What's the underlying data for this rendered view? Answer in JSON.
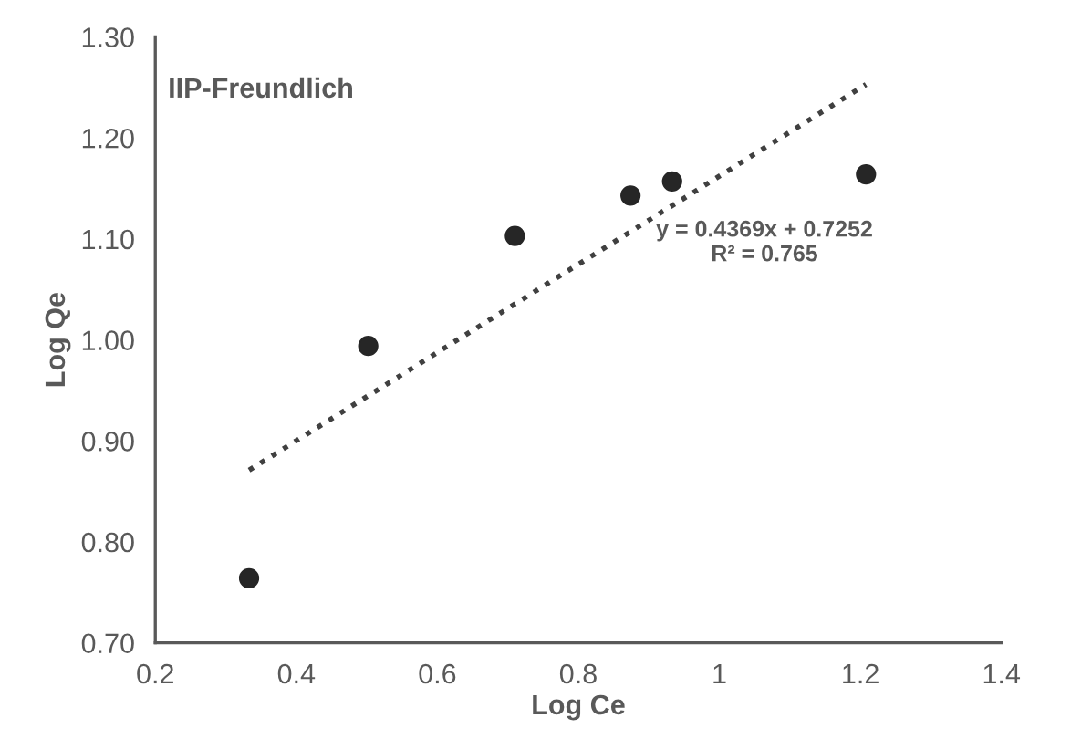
{
  "chart_data": {
    "type": "scatter",
    "title": "IIP-Freundlich",
    "xlabel": "Log Ce",
    "ylabel": "Log Qe",
    "series": [
      {
        "color": "#262626",
        "marker": "circle",
        "x": [
          0.333,
          0.502,
          0.71,
          0.874,
          0.933,
          1.208
        ],
        "values": [
          0.764,
          0.994,
          1.103,
          1.143,
          1.157,
          1.164
        ]
      },
      {
        "type": "line",
        "color": "#404040",
        "line_style": "dotted",
        "x": [
          0.333,
          1.208
        ],
        "values": [
          0.871,
          1.253
        ]
      }
    ],
    "annotations": [
      "y = 0.4369x + 0.7252\nR² = 0.765"
    ],
    "xlim": [
      0.2,
      1.4
    ],
    "xticks": [
      0.2,
      0.4,
      0.6,
      0.8,
      1,
      1.2,
      1.4
    ],
    "ylim": [
      0.7,
      1.3
    ],
    "yticks": [
      {
        "value": 0.7,
        "label": "0.70"
      },
      {
        "value": 0.8,
        "label": "0.80"
      },
      {
        "value": 0.9,
        "label": "0.90"
      },
      {
        "value": 1.0,
        "label": "1.00"
      },
      {
        "value": 1.1,
        "label": "1.10"
      },
      {
        "value": 1.2,
        "label": "1.20"
      },
      {
        "value": 1.3,
        "label": "1.30"
      }
    ],
    "grid": false,
    "legend": false
  }
}
